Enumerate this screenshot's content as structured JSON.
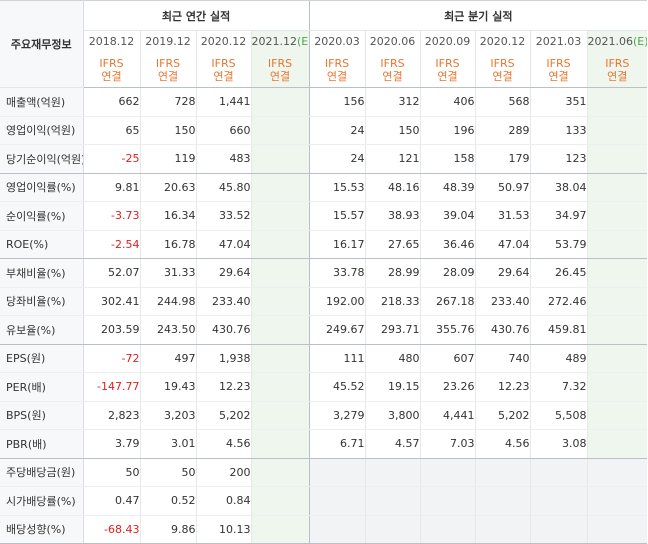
{
  "header": {
    "corner_label": "주요재무정보",
    "annual_title": "최근 연간 실적",
    "quarter_title": "최근 분기 실적",
    "annual_years": [
      "2018.12",
      "2019.12",
      "2020.12",
      "2021.12"
    ],
    "annual_est_mark": "(E)",
    "quarter_periods": [
      "2020.03",
      "2020.06",
      "2020.09",
      "2020.12",
      "2021.03",
      "2021.06"
    ],
    "quarter_est_mark": "(E)",
    "ifrs_line1": "IFRS",
    "ifrs_line2": "연결"
  },
  "rows": [
    {
      "label": "매출액(억원)",
      "annual": [
        "662",
        "728",
        "1,441",
        ""
      ],
      "quarter": [
        "156",
        "312",
        "406",
        "568",
        "351",
        ""
      ]
    },
    {
      "label": "영업이익(억원)",
      "annual": [
        "65",
        "150",
        "660",
        ""
      ],
      "quarter": [
        "24",
        "150",
        "196",
        "289",
        "133",
        ""
      ]
    },
    {
      "label": "당기순이익(억원)",
      "annual": [
        "-25",
        "119",
        "483",
        ""
      ],
      "quarter": [
        "24",
        "121",
        "158",
        "179",
        "123",
        ""
      ]
    },
    {
      "label": "영업이익률(%)",
      "annual": [
        "9.81",
        "20.63",
        "45.80",
        ""
      ],
      "quarter": [
        "15.53",
        "48.16",
        "48.39",
        "50.97",
        "38.04",
        ""
      ]
    },
    {
      "label": "순이익률(%)",
      "annual": [
        "-3.73",
        "16.34",
        "33.52",
        ""
      ],
      "quarter": [
        "15.57",
        "38.93",
        "39.04",
        "31.53",
        "34.97",
        ""
      ]
    },
    {
      "label": "ROE(%)",
      "annual": [
        "-2.54",
        "16.78",
        "47.04",
        ""
      ],
      "quarter": [
        "16.17",
        "27.65",
        "36.46",
        "47.04",
        "53.79",
        ""
      ]
    },
    {
      "label": "부채비율(%)",
      "annual": [
        "52.07",
        "31.33",
        "29.64",
        ""
      ],
      "quarter": [
        "33.78",
        "28.99",
        "28.09",
        "29.64",
        "26.45",
        ""
      ]
    },
    {
      "label": "당좌비율(%)",
      "annual": [
        "302.41",
        "244.98",
        "233.40",
        ""
      ],
      "quarter": [
        "192.00",
        "218.33",
        "267.18",
        "233.40",
        "272.46",
        ""
      ]
    },
    {
      "label": "유보율(%)",
      "annual": [
        "203.59",
        "243.50",
        "430.76",
        ""
      ],
      "quarter": [
        "249.67",
        "293.71",
        "355.76",
        "430.76",
        "459.81",
        ""
      ]
    },
    {
      "label": "EPS(원)",
      "annual": [
        "-72",
        "497",
        "1,938",
        ""
      ],
      "quarter": [
        "111",
        "480",
        "607",
        "740",
        "489",
        ""
      ]
    },
    {
      "label": "PER(배)",
      "annual": [
        "-147.77",
        "19.43",
        "12.23",
        ""
      ],
      "quarter": [
        "45.52",
        "19.15",
        "23.26",
        "12.23",
        "7.32",
        ""
      ]
    },
    {
      "label": "BPS(원)",
      "annual": [
        "2,823",
        "3,203",
        "5,202",
        ""
      ],
      "quarter": [
        "3,279",
        "3,800",
        "4,441",
        "5,202",
        "5,508",
        ""
      ]
    },
    {
      "label": "PBR(배)",
      "annual": [
        "3.79",
        "3.01",
        "4.56",
        ""
      ],
      "quarter": [
        "6.71",
        "4.57",
        "7.03",
        "4.56",
        "3.08",
        ""
      ]
    },
    {
      "label": "주당배당금(원)",
      "annual": [
        "50",
        "50",
        "200",
        ""
      ],
      "quarter": [
        "",
        "",
        "",
        "",
        "",
        ""
      ]
    },
    {
      "label": "시가배당률(%)",
      "annual": [
        "0.47",
        "0.52",
        "0.84",
        ""
      ],
      "quarter": [
        "",
        "",
        "",
        "",
        "",
        ""
      ]
    },
    {
      "label": "배당성향(%)",
      "annual": [
        "-68.43",
        "9.86",
        "10.13",
        ""
      ],
      "quarter": [
        "",
        "",
        "",
        "",
        "",
        ""
      ]
    }
  ],
  "colors": {
    "negative": "#e02020",
    "ifrs": "#e6772e",
    "estimate_bg": "#eef6ee",
    "estimate_mark": "#4aa84a"
  }
}
